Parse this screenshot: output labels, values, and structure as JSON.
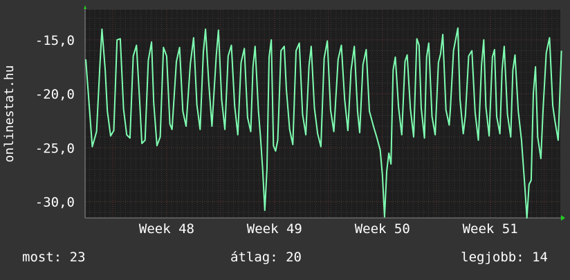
{
  "chart_data": {
    "type": "line",
    "ylabel": "onlinestat.hu",
    "ylim": [
      -31.5,
      -12.2
    ],
    "yticks": [
      -15,
      -20,
      -25,
      -30
    ],
    "ytick_labels": [
      "-15,0",
      "-20,0",
      "-25,0",
      "-30,0"
    ],
    "xlim_weeks": [
      47.25,
      51.65
    ],
    "xticks": [
      {
        "label": "Week 48",
        "week": 48
      },
      {
        "label": "Week 49",
        "week": 49
      },
      {
        "label": "Week 50",
        "week": 50
      },
      {
        "label": "Week 51",
        "week": 51
      }
    ],
    "grid": true,
    "series": [
      {
        "color": "#7FFFB2",
        "anchors": [
          [
            47.25,
            -16.8
          ],
          [
            47.31,
            -24.9
          ],
          [
            47.35,
            -23.5
          ],
          [
            47.38,
            -17.5
          ],
          [
            47.4,
            -14.0
          ],
          [
            47.43,
            -17.8
          ],
          [
            47.45,
            -21.6
          ],
          [
            47.48,
            -23.9
          ],
          [
            47.51,
            -23.4
          ],
          [
            47.54,
            -15.0
          ],
          [
            47.57,
            -14.9
          ],
          [
            47.6,
            -21.4
          ],
          [
            47.63,
            -23.8
          ],
          [
            47.66,
            -24.1
          ],
          [
            47.69,
            -16.5
          ],
          [
            47.72,
            -15.5
          ],
          [
            47.75,
            -20.8
          ],
          [
            47.77,
            -24.6
          ],
          [
            47.8,
            -24.3
          ],
          [
            47.83,
            -16.9
          ],
          [
            47.86,
            -15.2
          ],
          [
            47.88,
            -20.8
          ],
          [
            47.91,
            -24.8
          ],
          [
            47.94,
            -24.0
          ],
          [
            47.97,
            -15.7
          ],
          [
            48.0,
            -16.5
          ],
          [
            48.03,
            -22.8
          ],
          [
            48.05,
            -23.3
          ],
          [
            48.09,
            -17.0
          ],
          [
            48.12,
            -15.7
          ],
          [
            48.15,
            -21.6
          ],
          [
            48.18,
            -23.0
          ],
          [
            48.22,
            -17.2
          ],
          [
            48.25,
            -14.8
          ],
          [
            48.28,
            -21.0
          ],
          [
            48.31,
            -23.3
          ],
          [
            48.34,
            -16.2
          ],
          [
            48.36,
            -14.0
          ],
          [
            48.39,
            -18.9
          ],
          [
            48.42,
            -23.0
          ],
          [
            48.46,
            -16.4
          ],
          [
            48.48,
            -14.1
          ],
          [
            48.51,
            -20.5
          ],
          [
            48.54,
            -23.3
          ],
          [
            48.57,
            -16.5
          ],
          [
            48.6,
            -15.5
          ],
          [
            48.63,
            -21.1
          ],
          [
            48.66,
            -23.8
          ],
          [
            48.69,
            -17.1
          ],
          [
            48.72,
            -15.8
          ],
          [
            48.75,
            -22.2
          ],
          [
            48.78,
            -23.5
          ],
          [
            48.8,
            -17.5
          ],
          [
            48.82,
            -15.6
          ],
          [
            48.85,
            -21.5
          ],
          [
            48.87,
            -24.0
          ],
          [
            48.89,
            -27.0
          ],
          [
            48.91,
            -30.8
          ],
          [
            48.93,
            -27.0
          ],
          [
            48.95,
            -16.6
          ],
          [
            48.97,
            -15.0
          ],
          [
            48.99,
            -24.8
          ],
          [
            49.01,
            -25.3
          ],
          [
            49.03,
            -24.3
          ],
          [
            49.06,
            -16.0
          ],
          [
            49.09,
            -15.6
          ],
          [
            49.11,
            -19.6
          ],
          [
            49.14,
            -23.3
          ],
          [
            49.17,
            -24.7
          ],
          [
            49.2,
            -16.0
          ],
          [
            49.23,
            -15.3
          ],
          [
            49.26,
            -21.9
          ],
          [
            49.29,
            -23.8
          ],
          [
            49.32,
            -17.4
          ],
          [
            49.34,
            -15.6
          ],
          [
            49.37,
            -21.3
          ],
          [
            49.4,
            -23.7
          ],
          [
            49.43,
            -24.9
          ],
          [
            49.46,
            -16.7
          ],
          [
            49.49,
            -15.1
          ],
          [
            49.52,
            -21.5
          ],
          [
            49.55,
            -23.5
          ],
          [
            49.59,
            -16.8
          ],
          [
            49.62,
            -15.5
          ],
          [
            49.65,
            -20.5
          ],
          [
            49.68,
            -23.4
          ],
          [
            49.71,
            -17.8
          ],
          [
            49.74,
            -15.6
          ],
          [
            49.77,
            -21.6
          ],
          [
            49.79,
            -23.6
          ],
          [
            49.82,
            -17.3
          ],
          [
            49.85,
            -15.9
          ],
          [
            49.88,
            -21.6
          ],
          [
            49.92,
            -23.1
          ],
          [
            49.95,
            -24.1
          ],
          [
            49.98,
            -25.2
          ],
          [
            50.0,
            -27.5
          ],
          [
            50.02,
            -31.4
          ],
          [
            50.04,
            -27.2
          ],
          [
            50.06,
            -25.5
          ],
          [
            50.08,
            -26.5
          ],
          [
            50.1,
            -17.8
          ],
          [
            50.12,
            -16.6
          ],
          [
            50.15,
            -21.2
          ],
          [
            50.18,
            -23.8
          ],
          [
            50.21,
            -17.0
          ],
          [
            50.23,
            -16.4
          ],
          [
            50.26,
            -21.4
          ],
          [
            50.29,
            -24.0
          ],
          [
            50.32,
            -14.9
          ],
          [
            50.34,
            -15.5
          ],
          [
            50.36,
            -21.3
          ],
          [
            50.39,
            -24.1
          ],
          [
            50.41,
            -16.6
          ],
          [
            50.43,
            -15.3
          ],
          [
            50.46,
            -22.1
          ],
          [
            50.49,
            -23.8
          ],
          [
            50.52,
            -17.1
          ],
          [
            50.54,
            -16.3
          ],
          [
            50.56,
            -14.5
          ],
          [
            50.59,
            -21.5
          ],
          [
            50.62,
            -22.9
          ],
          [
            50.63,
            -21.5
          ],
          [
            50.66,
            -16.0
          ],
          [
            50.7,
            -13.9
          ],
          [
            50.72,
            -20.5
          ],
          [
            50.75,
            -23.7
          ],
          [
            50.77,
            -22.0
          ],
          [
            50.8,
            -16.5
          ],
          [
            50.83,
            -16.0
          ],
          [
            50.86,
            -21.7
          ],
          [
            50.89,
            -24.3
          ],
          [
            50.92,
            -17.3
          ],
          [
            50.94,
            -15.0
          ],
          [
            50.96,
            -21.2
          ],
          [
            50.99,
            -23.9
          ],
          [
            51.02,
            -16.6
          ],
          [
            51.04,
            -15.9
          ],
          [
            51.06,
            -22.1
          ],
          [
            51.09,
            -23.7
          ],
          [
            51.11,
            -17.8
          ],
          [
            51.13,
            -15.6
          ],
          [
            51.16,
            -21.9
          ],
          [
            51.19,
            -24.0
          ],
          [
            51.21,
            -17.8
          ],
          [
            51.23,
            -16.4
          ],
          [
            51.26,
            -21.6
          ],
          [
            51.29,
            -24.3
          ],
          [
            51.32,
            -28.5
          ],
          [
            51.34,
            -31.5
          ],
          [
            51.36,
            -28.4
          ],
          [
            51.38,
            -28.0
          ],
          [
            51.4,
            -20.0
          ],
          [
            51.42,
            -17.5
          ],
          [
            51.44,
            -24.0
          ],
          [
            51.47,
            -26.0
          ],
          [
            51.49,
            -21.4
          ],
          [
            51.52,
            -16.2
          ],
          [
            51.55,
            -14.8
          ],
          [
            51.58,
            -21.1
          ],
          [
            51.6,
            -22.5
          ],
          [
            51.63,
            -24.3
          ],
          [
            51.66,
            -16.0
          ]
        ]
      }
    ]
  },
  "stats": {
    "current": "most: 23",
    "average": "átlag: 20",
    "best": "legjobb: 14"
  }
}
